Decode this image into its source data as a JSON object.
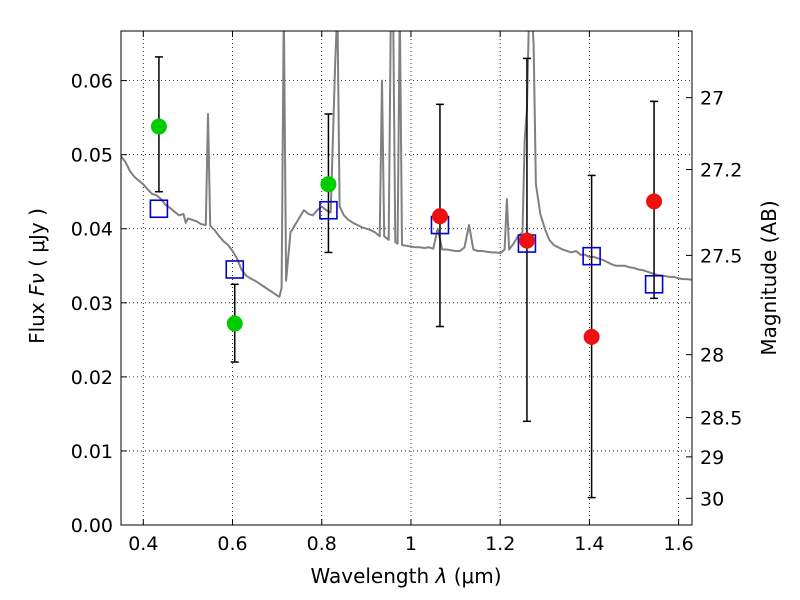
{
  "chart_data": {
    "type": "scatter",
    "xlabel": "Wavelength",
    "xlabel_symbol": "λ",
    "xlabel_unit": "(μm)",
    "ylabel": "Flux",
    "ylabel_symbol": "Fν",
    "ylabel_unit": "( μJy )",
    "y2label": "Magnitude (AB)",
    "xlim": [
      0.35,
      1.63
    ],
    "ylim": [
      0.0,
      0.0667
    ],
    "grid": true,
    "x_ticks": [
      0.4,
      0.6,
      0.8,
      1.0,
      1.2,
      1.4,
      1.6
    ],
    "x_tick_labels": [
      "0.4",
      "0.6",
      "0.8",
      "1",
      "1.2",
      "1.4",
      "1.6"
    ],
    "y_ticks": [
      0.0,
      0.01,
      0.02,
      0.03,
      0.04,
      0.05,
      0.06
    ],
    "y_tick_labels": [
      "0.00",
      "0.01",
      "0.02",
      "0.03",
      "0.04",
      "0.05",
      "0.06"
    ],
    "y2_ticks": [
      {
        "label": "27",
        "flux": 0.0577
      },
      {
        "label": "27.2",
        "flux": 0.048
      },
      {
        "label": "27.5",
        "flux": 0.0364
      },
      {
        "label": "28",
        "flux": 0.023
      },
      {
        "label": "28.5",
        "flux": 0.0145
      },
      {
        "label": "29",
        "flux": 0.0092
      },
      {
        "label": "30",
        "flux": 0.0036
      }
    ],
    "series": [
      {
        "kind": "spectrum",
        "color": "#808080",
        "points": [
          [
            0.35,
            0.0498
          ],
          [
            0.36,
            0.049
          ],
          [
            0.37,
            0.0478
          ],
          [
            0.38,
            0.047
          ],
          [
            0.39,
            0.0465
          ],
          [
            0.4,
            0.046
          ],
          [
            0.41,
            0.0453
          ],
          [
            0.42,
            0.0447
          ],
          [
            0.43,
            0.0445
          ],
          [
            0.44,
            0.044
          ],
          [
            0.45,
            0.0432
          ],
          [
            0.46,
            0.0428
          ],
          [
            0.47,
            0.0423
          ],
          [
            0.48,
            0.0418
          ],
          [
            0.49,
            0.042
          ],
          [
            0.495,
            0.0408
          ],
          [
            0.5,
            0.0414
          ],
          [
            0.51,
            0.0412
          ],
          [
            0.52,
            0.041
          ],
          [
            0.53,
            0.0406
          ],
          [
            0.54,
            0.0405
          ],
          [
            0.545,
            0.0555
          ],
          [
            0.55,
            0.0404
          ],
          [
            0.56,
            0.0398
          ],
          [
            0.57,
            0.039
          ],
          [
            0.58,
            0.0383
          ],
          [
            0.59,
            0.0378
          ],
          [
            0.6,
            0.037
          ],
          [
            0.61,
            0.036
          ],
          [
            0.62,
            0.0345
          ],
          [
            0.63,
            0.0337
          ],
          [
            0.64,
            0.0333
          ],
          [
            0.65,
            0.033
          ],
          [
            0.66,
            0.0326
          ],
          [
            0.67,
            0.0322
          ],
          [
            0.68,
            0.0318
          ],
          [
            0.69,
            0.0314
          ],
          [
            0.7,
            0.031
          ],
          [
            0.705,
            0.0308
          ],
          [
            0.71,
            0.032
          ],
          [
            0.715,
            0.07
          ],
          [
            0.72,
            0.033
          ],
          [
            0.73,
            0.0395
          ],
          [
            0.74,
            0.0405
          ],
          [
            0.75,
            0.0415
          ],
          [
            0.76,
            0.0425
          ],
          [
            0.77,
            0.042
          ],
          [
            0.78,
            0.0418
          ],
          [
            0.79,
            0.0425
          ],
          [
            0.8,
            0.043
          ],
          [
            0.81,
            0.0425
          ],
          [
            0.82,
            0.0422
          ],
          [
            0.83,
            0.062
          ],
          [
            0.835,
            0.07
          ],
          [
            0.84,
            0.043
          ],
          [
            0.85,
            0.0418
          ],
          [
            0.86,
            0.0412
          ],
          [
            0.87,
            0.0408
          ],
          [
            0.88,
            0.0405
          ],
          [
            0.89,
            0.0402
          ],
          [
            0.9,
            0.04
          ],
          [
            0.91,
            0.0398
          ],
          [
            0.92,
            0.0395
          ],
          [
            0.93,
            0.039
          ],
          [
            0.935,
            0.06
          ],
          [
            0.94,
            0.039
          ],
          [
            0.95,
            0.0385
          ],
          [
            0.955,
            0.07
          ],
          [
            0.96,
            0.07
          ],
          [
            0.965,
            0.0382
          ],
          [
            0.97,
            0.038
          ],
          [
            0.975,
            0.07
          ],
          [
            0.98,
            0.0378
          ],
          [
            0.99,
            0.0377
          ],
          [
            1.0,
            0.0376
          ],
          [
            1.01,
            0.0375
          ],
          [
            1.02,
            0.0375
          ],
          [
            1.03,
            0.0374
          ],
          [
            1.04,
            0.0375
          ],
          [
            1.05,
            0.0373
          ],
          [
            1.06,
            0.04
          ],
          [
            1.07,
            0.0372
          ],
          [
            1.08,
            0.0372
          ],
          [
            1.09,
            0.0371
          ],
          [
            1.1,
            0.037
          ],
          [
            1.11,
            0.037
          ],
          [
            1.12,
            0.0375
          ],
          [
            1.13,
            0.0405
          ],
          [
            1.14,
            0.0372
          ],
          [
            1.15,
            0.037
          ],
          [
            1.16,
            0.037
          ],
          [
            1.17,
            0.0369
          ],
          [
            1.18,
            0.0368
          ],
          [
            1.19,
            0.0368
          ],
          [
            1.2,
            0.0367
          ],
          [
            1.21,
            0.0372
          ],
          [
            1.215,
            0.044
          ],
          [
            1.22,
            0.0372
          ],
          [
            1.23,
            0.038
          ],
          [
            1.24,
            0.039
          ],
          [
            1.25,
            0.0395
          ],
          [
            1.255,
            0.052
          ],
          [
            1.26,
            0.056
          ],
          [
            1.265,
            0.07
          ],
          [
            1.27,
            0.07
          ],
          [
            1.275,
            0.065
          ],
          [
            1.28,
            0.046
          ],
          [
            1.29,
            0.042
          ],
          [
            1.3,
            0.04
          ],
          [
            1.31,
            0.0385
          ],
          [
            1.32,
            0.0378
          ],
          [
            1.33,
            0.0375
          ],
          [
            1.34,
            0.0372
          ],
          [
            1.35,
            0.037
          ],
          [
            1.36,
            0.0368
          ],
          [
            1.37,
            0.037
          ],
          [
            1.38,
            0.0365
          ],
          [
            1.39,
            0.0365
          ],
          [
            1.4,
            0.0362
          ],
          [
            1.41,
            0.0362
          ],
          [
            1.42,
            0.036
          ],
          [
            1.43,
            0.0358
          ],
          [
            1.44,
            0.0355
          ],
          [
            1.45,
            0.0352
          ],
          [
            1.46,
            0.035
          ],
          [
            1.47,
            0.035
          ],
          [
            1.48,
            0.035
          ],
          [
            1.49,
            0.0348
          ],
          [
            1.5,
            0.0347
          ],
          [
            1.51,
            0.0345
          ],
          [
            1.52,
            0.0344
          ],
          [
            1.53,
            0.0342
          ],
          [
            1.54,
            0.034
          ],
          [
            1.55,
            0.0338
          ],
          [
            1.56,
            0.0337
          ],
          [
            1.57,
            0.0336
          ],
          [
            1.58,
            0.0335
          ],
          [
            1.59,
            0.0335
          ],
          [
            1.6,
            0.0333
          ],
          [
            1.61,
            0.0332
          ],
          [
            1.62,
            0.0332
          ],
          [
            1.63,
            0.0331
          ]
        ]
      },
      {
        "kind": "observed",
        "color": "#00cc00",
        "points": [
          {
            "x": 0.435,
            "y": 0.0538,
            "err_low": 0.045,
            "err_high": 0.0632
          },
          {
            "x": 0.605,
            "y": 0.0272,
            "err_low": 0.022,
            "err_high": 0.0325
          },
          {
            "x": 0.815,
            "y": 0.046,
            "err_low": 0.0368,
            "err_high": 0.0555
          }
        ]
      },
      {
        "kind": "observed",
        "color": "#ee1111",
        "points": [
          {
            "x": 1.065,
            "y": 0.0417,
            "err_low": 0.0268,
            "err_high": 0.0568
          },
          {
            "x": 1.26,
            "y": 0.0384,
            "err_low": 0.014,
            "err_high": 0.063
          },
          {
            "x": 1.405,
            "y": 0.0254,
            "err_low": 0.0037,
            "err_high": 0.0472
          },
          {
            "x": 1.545,
            "y": 0.0437,
            "err_low": 0.0306,
            "err_high": 0.0572
          }
        ]
      },
      {
        "kind": "model-photometry",
        "color": "#0000cc",
        "points": [
          {
            "x": 0.435,
            "y": 0.0427
          },
          {
            "x": 0.605,
            "y": 0.0345
          },
          {
            "x": 0.815,
            "y": 0.0425
          },
          {
            "x": 1.065,
            "y": 0.0405
          },
          {
            "x": 1.26,
            "y": 0.038
          },
          {
            "x": 1.405,
            "y": 0.0363
          },
          {
            "x": 1.545,
            "y": 0.0325
          }
        ]
      }
    ]
  }
}
